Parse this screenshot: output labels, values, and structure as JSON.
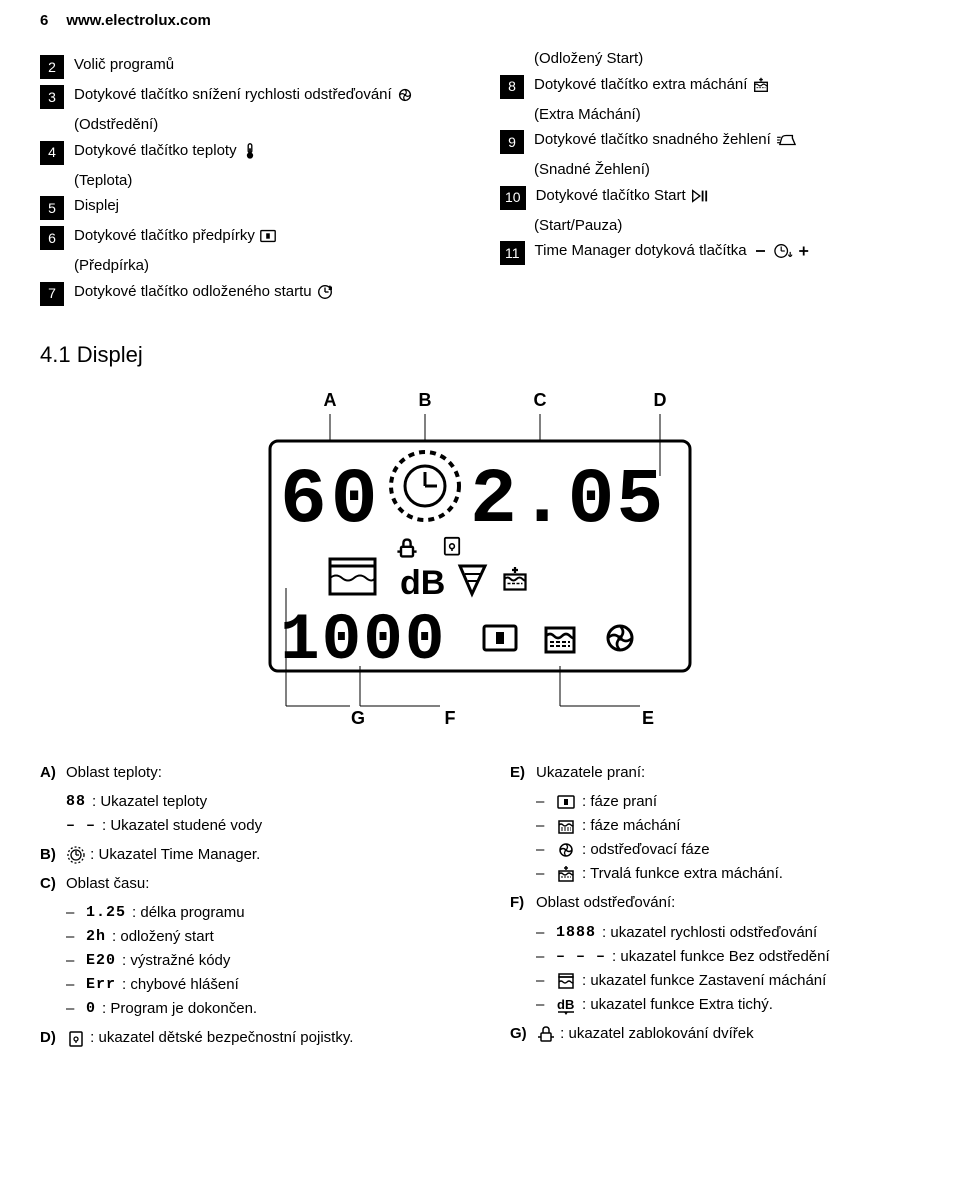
{
  "header": {
    "page_num": "6",
    "url": "www.electrolux.com"
  },
  "left_items": [
    {
      "n": "2",
      "text": "Volič programů"
    },
    {
      "n": "3",
      "text": "Dotykové tlačítko snížení rychlosti odstřeďování ",
      "icon": "spin",
      "sub": "(Odstředění)"
    },
    {
      "n": "4",
      "text": "Dotykové tlačítko teploty ",
      "icon": "temp",
      "sub": "(Teplota)"
    },
    {
      "n": "5",
      "text": "Displej"
    },
    {
      "n": "6",
      "text": "Dotykové tlačítko předpírky ",
      "icon": "prewash",
      "sub": "(Předpírka)"
    },
    {
      "n": "7",
      "text": "Dotykové tlačítko odloženého startu ",
      "icon": "delay"
    }
  ],
  "right_items": [
    {
      "sub_only": "(Odložený Start)"
    },
    {
      "n": "8",
      "text": "Dotykové tlačítko extra máchání ",
      "icon": "extra-rinse",
      "sub": "(Extra Máchání)"
    },
    {
      "n": "9",
      "text": "Dotykové tlačítko snadného žehlení ",
      "icon": "iron",
      "sub": "(Snadné Žehlení)"
    },
    {
      "n": "10",
      "text": "Dotykové tlačítko Start ",
      "icon": "startpause",
      "sub": "(Start/Pauza)"
    },
    {
      "n": "11",
      "text": "Time Manager dotyková tlačítka ",
      "icon": "timemanager"
    }
  ],
  "section_41": "4.1 Displej",
  "display": {
    "top_labels": [
      "A",
      "B",
      "C",
      "D"
    ],
    "bottom_labels_left": [
      "G",
      "F"
    ],
    "bottom_labels_right": [
      "E"
    ],
    "big_left": "60",
    "big_right": "2.05",
    "lower_num": "1000"
  },
  "legend_left": {
    "A": {
      "title": "Oblast teploty:",
      "rows": [
        {
          "icon": "seg88",
          "text": ": Ukazatel teploty"
        },
        {
          "icon": "dashes2",
          "text": ": Ukazatel studené vody"
        }
      ]
    },
    "B": {
      "icon": "clock-ring",
      "text": ": Ukazatel Time Manager."
    },
    "C": {
      "title": "Oblast času:",
      "rows": [
        {
          "dash": true,
          "icon": "seg125",
          "text": ": délka programu"
        },
        {
          "dash": true,
          "icon": "seg2h",
          "text": ": odložený start"
        },
        {
          "dash": true,
          "icon": "segE20",
          "text": ": výstražné kódy"
        },
        {
          "dash": true,
          "icon": "segErr",
          "text": ": chybové hlášení"
        },
        {
          "dash": true,
          "icon": "seg0",
          "text": ": Program je dokončen."
        }
      ]
    },
    "D": {
      "icon": "childlock",
      "text": ": ukazatel dětské bezpečnostní pojistky."
    }
  },
  "legend_right": {
    "E": {
      "title": "Ukazatele praní:",
      "rows": [
        {
          "dash": true,
          "icon": "prewash",
          "text": ": fáze praní"
        },
        {
          "dash": true,
          "icon": "rinse",
          "text": ": fáze máchání"
        },
        {
          "dash": true,
          "icon": "spin",
          "text": ": odstřeďovací fáze"
        },
        {
          "dash": true,
          "icon": "extra-rinse",
          "text": ": Trvalá funkce extra máchání."
        }
      ]
    },
    "F": {
      "title": "Oblast odstřeďování:",
      "rows": [
        {
          "dash": true,
          "icon": "seg1888",
          "text": ": ukazatel rychlosti odstřeďování"
        },
        {
          "dash": true,
          "icon": "dashes3",
          "text": ": ukazatel funkce Bez odstředění"
        },
        {
          "dash": true,
          "icon": "rinse-hold",
          "text": ": ukazatel funkce Zastavení máchání"
        },
        {
          "dash": true,
          "icon": "db",
          "text": ": ukazatel funkce Extra tichý."
        }
      ]
    },
    "G": {
      "icon": "doorlock",
      "text": ": ukazatel zablokování dvířek"
    }
  }
}
